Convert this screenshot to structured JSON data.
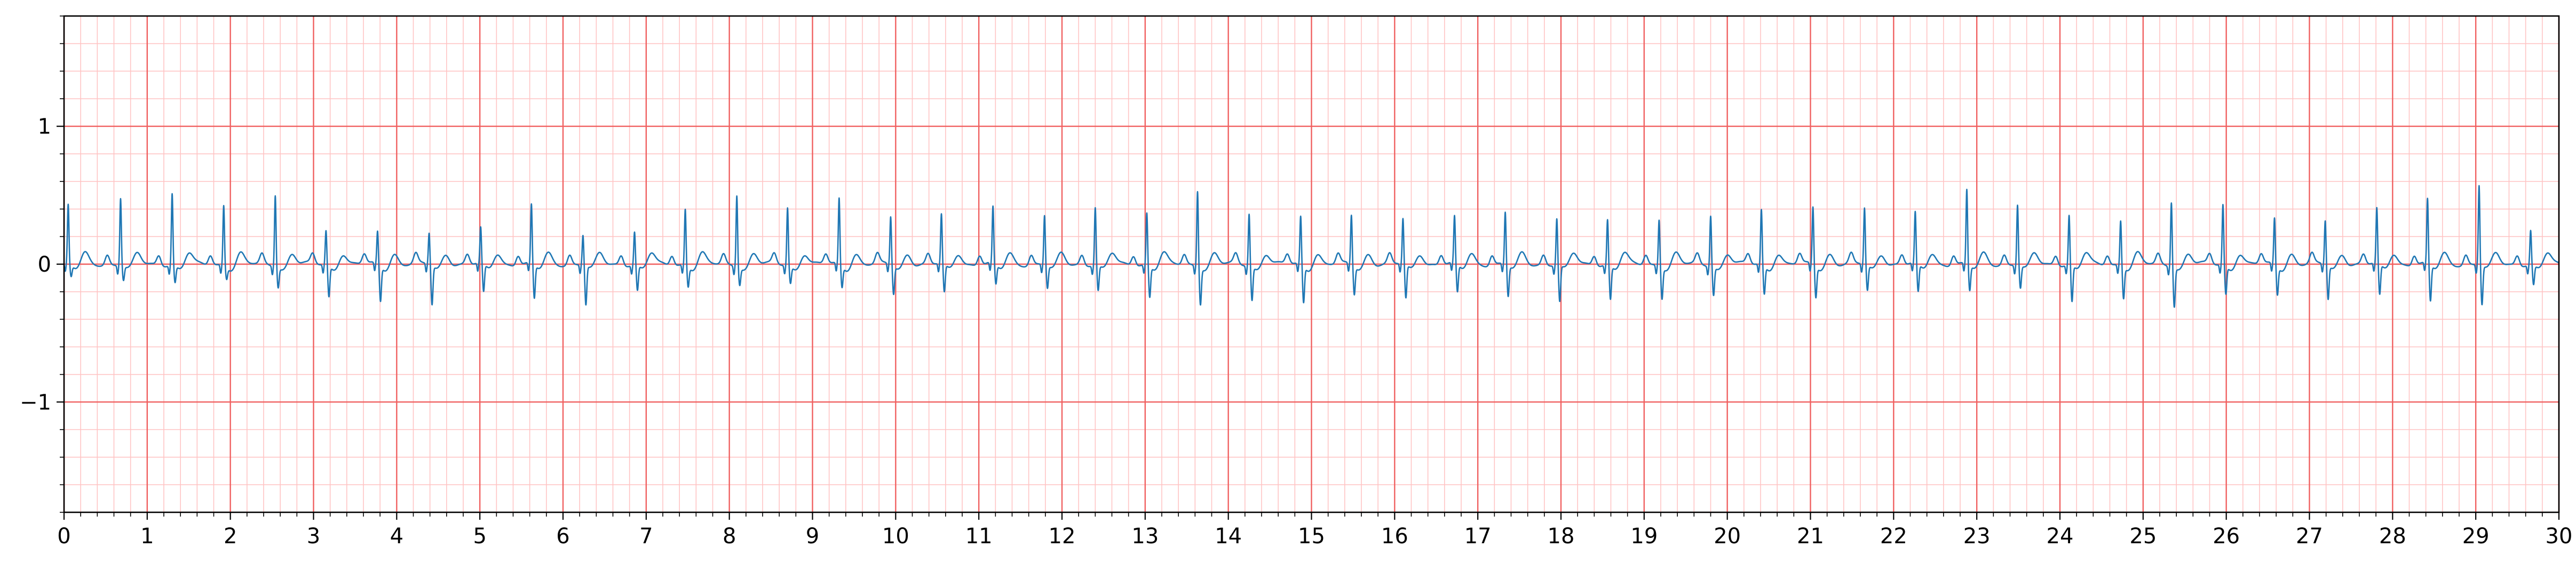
{
  "chart_data": {
    "type": "line",
    "title": "",
    "xlabel": "",
    "ylabel": "",
    "xlim": [
      0,
      30
    ],
    "ylim": [
      -1.8,
      1.8
    ],
    "x_ticks": [
      0,
      1,
      2,
      3,
      4,
      5,
      6,
      7,
      8,
      9,
      10,
      11,
      12,
      13,
      14,
      15,
      16,
      17,
      18,
      19,
      20,
      21,
      22,
      23,
      24,
      25,
      26,
      27,
      28,
      29,
      30
    ],
    "x_tick_labels": [
      "0",
      "1",
      "2",
      "3",
      "4",
      "5",
      "6",
      "7",
      "8",
      "9",
      "10",
      "11",
      "12",
      "13",
      "14",
      "15",
      "16",
      "17",
      "18",
      "19",
      "20",
      "21",
      "22",
      "23",
      "24",
      "25",
      "26",
      "27",
      "28",
      "29",
      "30"
    ],
    "y_ticks": [
      -1,
      0,
      1
    ],
    "y_tick_labels": [
      "−1",
      "0",
      "1"
    ],
    "grid": "ECG paper: major lines every 1 s and 1 mV, minor lines every 0.2 s and 0.2 mV",
    "grid_major_color": "#f06060",
    "grid_minor_color": "#ffc4c4",
    "line_color": "#1f77b4",
    "series": [
      {
        "name": "",
        "beat_times": [
          0.05,
          0.68,
          1.3,
          1.92,
          2.54,
          3.15,
          3.77,
          4.39,
          5.01,
          5.62,
          6.24,
          6.86,
          7.47,
          8.09,
          8.7,
          9.32,
          9.94,
          10.55,
          11.17,
          11.79,
          12.4,
          13.02,
          13.63,
          14.25,
          14.87,
          15.48,
          16.1,
          16.72,
          17.33,
          17.95,
          18.56,
          19.18,
          19.8,
          20.41,
          21.03,
          21.65,
          22.26,
          22.88,
          23.49,
          24.11,
          24.73,
          25.34,
          25.96,
          26.58,
          27.19,
          27.81,
          28.42,
          29.04,
          29.66
        ],
        "r_peak_values": [
          0.43,
          0.49,
          0.52,
          0.44,
          0.52,
          0.25,
          0.24,
          0.23,
          0.26,
          0.43,
          0.22,
          0.24,
          0.41,
          0.52,
          0.42,
          0.48,
          0.35,
          0.36,
          0.41,
          0.36,
          0.42,
          0.38,
          0.55,
          0.38,
          0.35,
          0.36,
          0.33,
          0.34,
          0.38,
          0.34,
          0.33,
          0.34,
          0.37,
          0.4,
          0.42,
          0.41,
          0.37,
          0.54,
          0.44,
          0.36,
          0.33,
          0.47,
          0.44,
          0.34,
          0.32,
          0.4,
          0.47,
          0.58,
          0.25
        ],
        "s_trough_values": [
          -0.08,
          -0.1,
          -0.12,
          -0.08,
          -0.14,
          -0.22,
          -0.25,
          -0.28,
          -0.2,
          -0.24,
          -0.28,
          -0.18,
          -0.14,
          -0.12,
          -0.12,
          -0.15,
          -0.2,
          -0.2,
          -0.14,
          -0.16,
          -0.18,
          -0.22,
          -0.26,
          -0.24,
          -0.26,
          -0.2,
          -0.24,
          -0.2,
          -0.22,
          -0.26,
          -0.24,
          -0.22,
          -0.2,
          -0.2,
          -0.22,
          -0.18,
          -0.2,
          -0.18,
          -0.16,
          -0.26,
          -0.22,
          -0.28,
          -0.2,
          -0.2,
          -0.24,
          -0.22,
          -0.26,
          -0.28,
          -0.14
        ]
      }
    ]
  }
}
